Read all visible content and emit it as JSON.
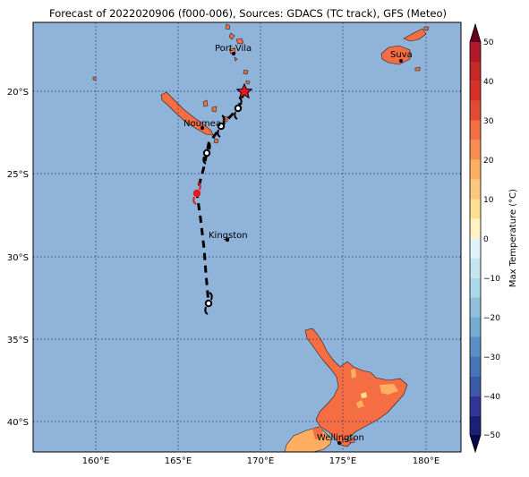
{
  "title": "Forecast of 2022020906 (f000-006), Sources: GDACS (TC track), GFS (Meteo)",
  "lat_labels": [
    "20°S",
    "25°S",
    "30°S",
    "35°S",
    "40°S"
  ],
  "lon_labels": [
    "160°E",
    "165°E",
    "170°E",
    "175°E",
    "180°E"
  ],
  "cities": [
    {
      "name": "Port-Vila"
    },
    {
      "name": "Suva"
    },
    {
      "name": "Noumea"
    },
    {
      "name": "Kingston"
    },
    {
      "name": "Wellington"
    }
  ],
  "colorbar": {
    "label": "Max Temperature (°C)",
    "ticks": [
      "50",
      "40",
      "30",
      "20",
      "10",
      "0",
      "−10",
      "−20",
      "−30",
      "−40",
      "−50"
    ]
  },
  "colors": {
    "ocean": "#8fb3d9",
    "land_warm": "#f46d43",
    "land_mild": "#fdae61",
    "land_cool": "#fee090",
    "track": "#000000",
    "marker_current": "#e31a1c"
  }
}
